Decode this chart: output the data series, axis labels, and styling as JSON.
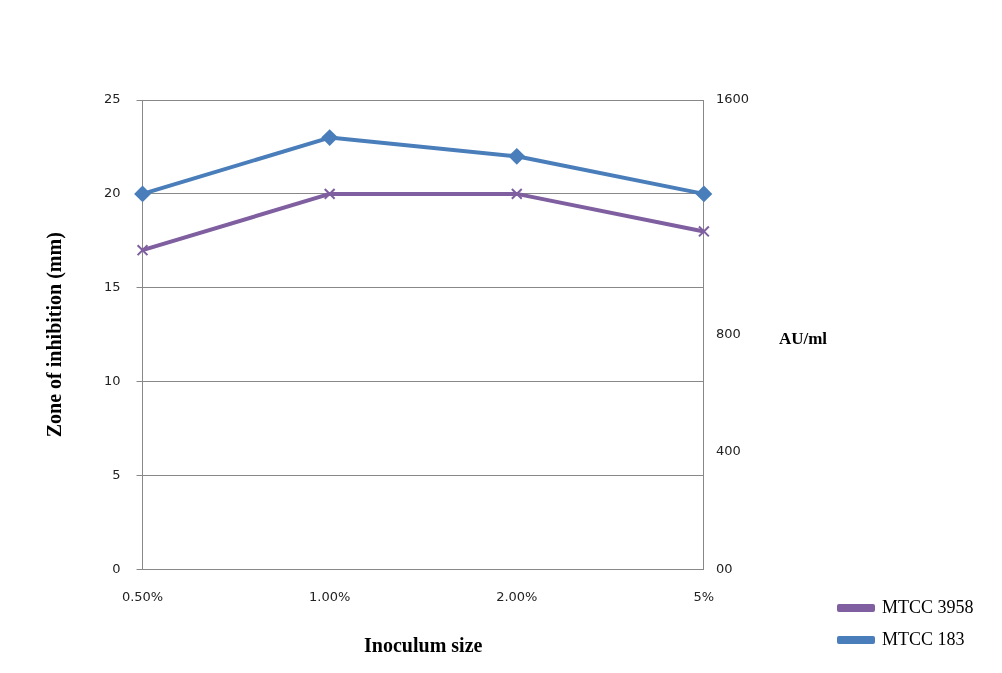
{
  "chart_data": {
    "type": "line",
    "xlabel": "Inoculum size",
    "ylabel": "Zone of inhibition (mm)",
    "y2label": "AU/ml",
    "categories": [
      "0.50%",
      "1.00%",
      "2.00%",
      "5%"
    ],
    "series": [
      {
        "name": "MTCC 3958",
        "color": "#7f5fa0",
        "values": [
          17,
          20,
          20,
          18
        ],
        "marker": "cross"
      },
      {
        "name": "MTCC 183",
        "color": "#4a7ebb",
        "values": [
          20,
          23,
          22,
          20
        ],
        "marker": "diamond"
      }
    ],
    "ylim": [
      0,
      25
    ],
    "yticks": [
      0,
      5,
      10,
      15,
      20,
      25
    ],
    "y2lim": [
      0,
      1600
    ],
    "y2ticks": [
      {
        "value": 0,
        "label": "00"
      },
      400,
      800,
      1600
    ],
    "grid": "y",
    "legend": "bottom right",
    "line_style": "solid"
  }
}
